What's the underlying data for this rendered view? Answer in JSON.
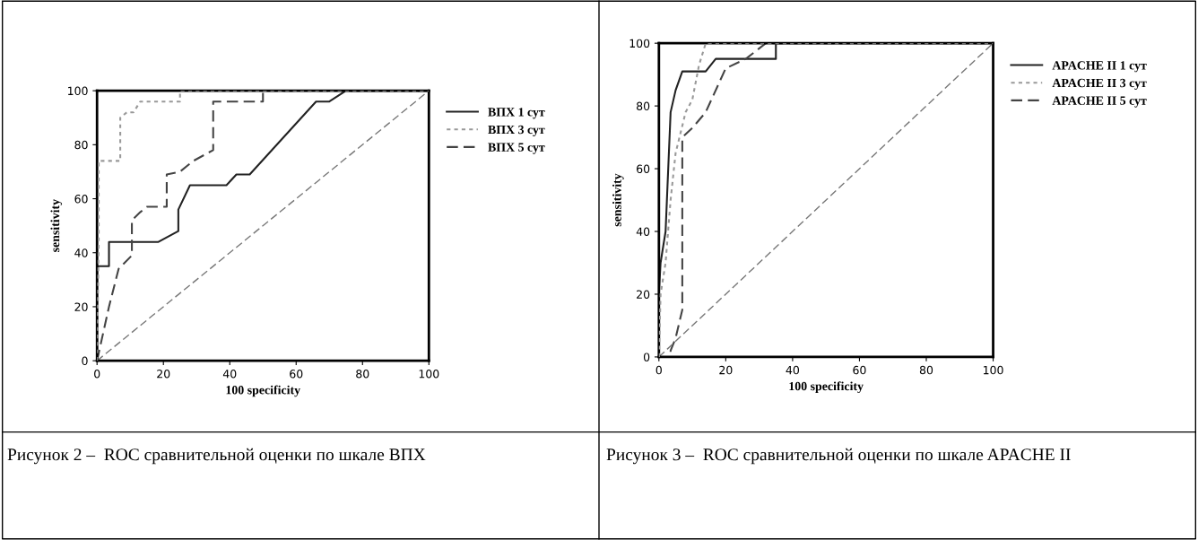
{
  "chart_data": [
    {
      "type": "line",
      "xlabel": "100 specificity",
      "ylabel": "sensitivity",
      "xlim": [
        0,
        100
      ],
      "ylim": [
        0,
        100
      ],
      "xticks": [
        0,
        20,
        40,
        60,
        80,
        100
      ],
      "yticks": [
        0,
        20,
        40,
        60,
        80,
        100
      ],
      "grid": false,
      "legend": "top right",
      "annotations": [
        "Рисунок 2 –  ROC сравнительной оценки по шкале ВПХ"
      ],
      "series": [
        {
          "name": "ВПХ 1 сут",
          "color": "#222222",
          "line_style": "solid",
          "x": [
            0,
            0,
            0,
            3.6,
            3.6,
            18.5,
            24.5,
            24.5,
            28,
            39,
            42,
            46,
            66,
            70,
            75,
            100
          ],
          "values": [
            0,
            14,
            35,
            35,
            44,
            44,
            48,
            56,
            65,
            65,
            69,
            69,
            96,
            96,
            100,
            100
          ]
        },
        {
          "name": "ВПХ 3 сут",
          "color": "#999999",
          "line_style": "dotted",
          "x": [
            0,
            0.5,
            0.5,
            7,
            7,
            9,
            11,
            13,
            25,
            25,
            100
          ],
          "values": [
            0,
            44,
            74,
            74,
            90,
            92,
            92,
            96,
            96,
            100,
            100
          ]
        },
        {
          "name": "ВПХ 5 сут",
          "color": "#444444",
          "line_style": "dashed",
          "x": [
            0,
            3.6,
            6.5,
            10.5,
            10.5,
            13,
            15,
            21,
            21,
            25,
            29,
            35,
            35,
            50,
            50,
            100
          ],
          "values": [
            0,
            20,
            34,
            39,
            52,
            55,
            57,
            57,
            69,
            70,
            74,
            78,
            96,
            96,
            100,
            100
          ]
        },
        {
          "color": "#777777",
          "line_style": "dashed",
          "x": [
            0,
            100
          ],
          "values": [
            0,
            100
          ]
        }
      ]
    },
    {
      "type": "line",
      "xlabel": "100 specificity",
      "ylabel": "sensitivity",
      "xlim": [
        0,
        100
      ],
      "ylim": [
        0,
        100
      ],
      "xticks": [
        0,
        20,
        40,
        60,
        80,
        100
      ],
      "yticks": [
        0,
        20,
        40,
        60,
        80,
        100
      ],
      "grid": false,
      "legend": "top right",
      "annotations": [
        "Рисунок 3 –  ROC сравнительной оценки по шкале APACHE II"
      ],
      "series": [
        {
          "name": "APACHE II 1 сут",
          "color": "#222222",
          "line_style": "solid",
          "x": [
            0,
            0,
            0.5,
            2,
            3.5,
            5,
            7,
            14,
            17,
            35,
            35,
            100
          ],
          "values": [
            0,
            20,
            30,
            40,
            78,
            85,
            91,
            91,
            95,
            95,
            100,
            100
          ]
        },
        {
          "name": "APACHE II 3 сут",
          "color": "#999999",
          "line_style": "dotted",
          "x": [
            0,
            0.5,
            2,
            3.5,
            5,
            8,
            10,
            12,
            14,
            100
          ],
          "values": [
            0,
            20,
            30,
            50,
            65,
            78,
            82,
            93,
            100,
            100
          ]
        },
        {
          "name": "APACHE II 5 сут",
          "color": "#444444",
          "line_style": "dashed",
          "x": [
            0,
            3.5,
            3.5,
            5,
            7,
            7,
            10,
            14,
            20,
            26,
            32,
            100
          ],
          "values": [
            0,
            0,
            2,
            6,
            15,
            70,
            73,
            78,
            92,
            95,
            100,
            100
          ]
        },
        {
          "color": "#777777",
          "line_style": "dashed",
          "x": [
            0,
            100
          ],
          "values": [
            0,
            100
          ]
        }
      ]
    }
  ]
}
